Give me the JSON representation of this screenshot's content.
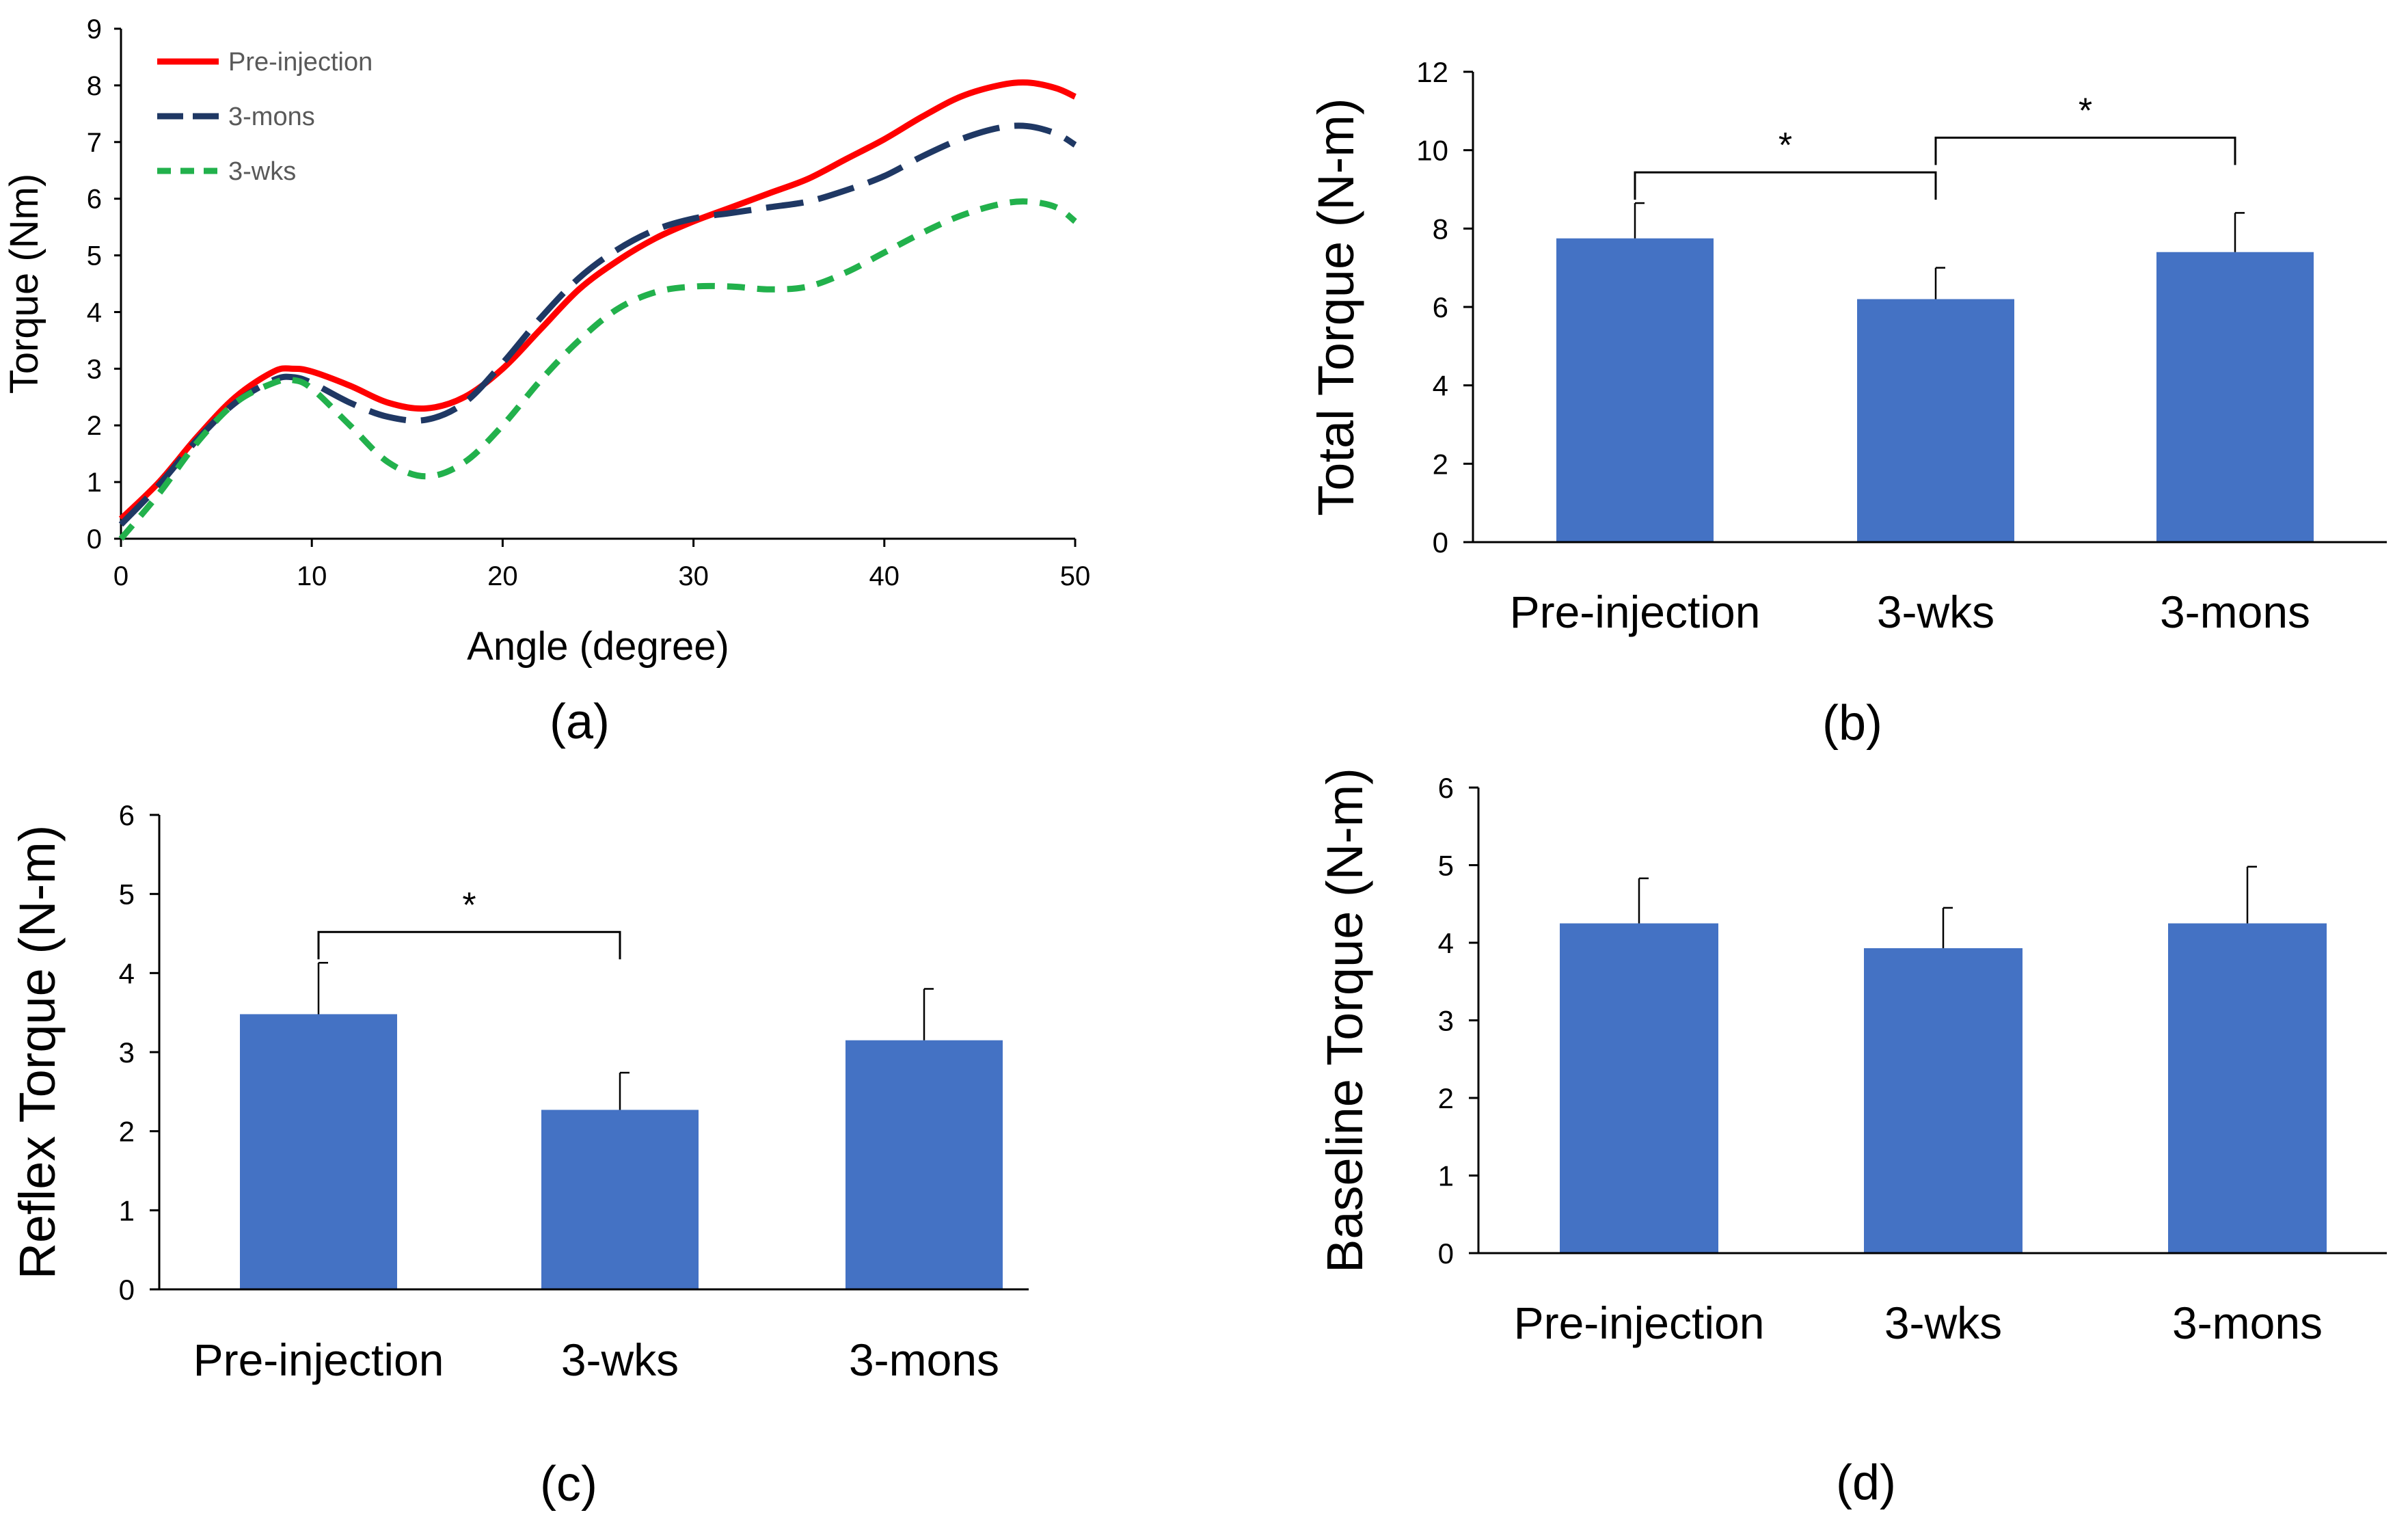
{
  "chart_data": [
    {
      "id": "a",
      "type": "line",
      "panel_label": "(a)",
      "xlabel": "Angle (degree)",
      "ylabel": "Torque (Nm)",
      "xlim": [
        0,
        50
      ],
      "ylim": [
        0,
        9
      ],
      "xticks": [
        "0",
        "10",
        "20",
        "30",
        "40",
        "50"
      ],
      "yticks": [
        "0",
        "1",
        "2",
        "3",
        "4",
        "5",
        "6",
        "7",
        "8",
        "9"
      ],
      "legend_position": "top-left",
      "series": [
        {
          "name": "Pre-injection",
          "color": "#FF0000",
          "style": "solid",
          "x": [
            0,
            2,
            4,
            6,
            8,
            9,
            10,
            12,
            14,
            16,
            18,
            20,
            22,
            24,
            26,
            28,
            30,
            32,
            34,
            36,
            38,
            40,
            42,
            44,
            46,
            47.5,
            49,
            50
          ],
          "y": [
            0.35,
            1.0,
            1.8,
            2.5,
            2.95,
            3.0,
            2.95,
            2.7,
            2.4,
            2.3,
            2.5,
            3.0,
            3.7,
            4.4,
            4.9,
            5.3,
            5.6,
            5.85,
            6.1,
            6.35,
            6.7,
            7.05,
            7.45,
            7.8,
            8.0,
            8.05,
            7.95,
            7.8
          ]
        },
        {
          "name": "3-mons",
          "color": "#1F3864",
          "style": "dashed",
          "x": [
            0,
            2,
            4,
            6,
            8,
            9,
            10,
            12,
            14,
            16,
            18,
            20,
            22,
            24,
            26,
            28,
            30,
            32,
            34,
            36,
            38,
            40,
            42,
            44,
            46,
            47.5,
            49,
            50
          ],
          "y": [
            0.25,
            0.95,
            1.75,
            2.4,
            2.8,
            2.85,
            2.75,
            2.4,
            2.15,
            2.1,
            2.4,
            3.1,
            3.9,
            4.6,
            5.1,
            5.45,
            5.65,
            5.75,
            5.85,
            5.95,
            6.15,
            6.4,
            6.75,
            7.05,
            7.25,
            7.28,
            7.15,
            6.95
          ]
        },
        {
          "name": "3-wks",
          "color": "#22B14C",
          "style": "dashed",
          "x": [
            0,
            2,
            4,
            6,
            8,
            9,
            10,
            12,
            14,
            16,
            18,
            20,
            22,
            24,
            26,
            28,
            30,
            32,
            34,
            36,
            38,
            40,
            42,
            44,
            46,
            47.5,
            49,
            50
          ],
          "y": [
            0.0,
            0.8,
            1.7,
            2.4,
            2.75,
            2.8,
            2.65,
            2.0,
            1.35,
            1.1,
            1.35,
            2.0,
            2.8,
            3.5,
            4.05,
            4.35,
            4.45,
            4.45,
            4.4,
            4.45,
            4.7,
            5.05,
            5.4,
            5.7,
            5.9,
            5.95,
            5.85,
            5.6
          ]
        }
      ]
    },
    {
      "id": "b",
      "type": "bar",
      "panel_label": "(b)",
      "ylabel": "Total Torque (N-m)",
      "categories": [
        "Pre-injection",
        "3-wks",
        "3-mons"
      ],
      "values": [
        7.75,
        6.2,
        7.4
      ],
      "errors": [
        0.9,
        0.8,
        1.0
      ],
      "ylim": [
        0,
        12
      ],
      "yticks": [
        "0",
        "2",
        "4",
        "6",
        "8",
        "10",
        "12"
      ],
      "bar_color": "#4472C4",
      "significance": [
        {
          "from": 0,
          "to": 1,
          "label": "*"
        },
        {
          "from": 1,
          "to": 2,
          "label": "*"
        }
      ]
    },
    {
      "id": "c",
      "type": "bar",
      "panel_label": "(c)",
      "ylabel": "Reflex Torque (N-m)",
      "categories": [
        "Pre-injection",
        "3-wks",
        "3-mons"
      ],
      "values": [
        3.48,
        2.27,
        3.15
      ],
      "errors": [
        0.65,
        0.47,
        0.65
      ],
      "ylim": [
        0,
        6
      ],
      "yticks": [
        "0",
        "1",
        "2",
        "3",
        "4",
        "5",
        "6"
      ],
      "bar_color": "#4472C4",
      "significance": [
        {
          "from": 0,
          "to": 1,
          "label": "*"
        }
      ]
    },
    {
      "id": "d",
      "type": "bar",
      "panel_label": "(d)",
      "ylabel": "Baseline Torque (N-m)",
      "categories": [
        "Pre-injection",
        "3-wks",
        "3-mons"
      ],
      "values": [
        4.25,
        3.93,
        4.25
      ],
      "errors": [
        0.58,
        0.52,
        0.73
      ],
      "ylim": [
        0,
        6
      ],
      "yticks": [
        "0",
        "1",
        "2",
        "3",
        "4",
        "5",
        "6"
      ],
      "bar_color": "#4472C4",
      "significance": []
    }
  ]
}
